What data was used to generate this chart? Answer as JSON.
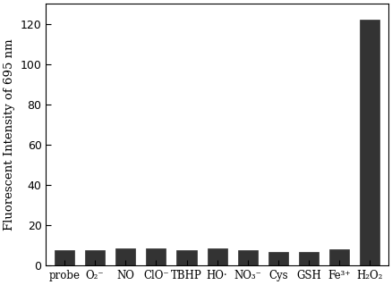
{
  "categories": [
    "probe",
    "O₂⁻",
    "NO",
    "ClO⁻",
    "TBHP",
    "HO·",
    "NO₃⁻",
    "Cys",
    "GSH",
    "Fe³⁺",
    "H₂O₂"
  ],
  "values": [
    7.5,
    7.5,
    8.5,
    8.5,
    7.5,
    8.5,
    7.5,
    6.5,
    6.5,
    8.0,
    122.0
  ],
  "bar_color": "#333333",
  "ylabel": "Fluorescent Intensity of 695 nm",
  "ylim": [
    0,
    130
  ],
  "yticks": [
    0,
    20,
    40,
    60,
    80,
    100,
    120
  ],
  "bar_width": 0.65,
  "edge_color": "#333333",
  "background_color": "#ffffff",
  "ylabel_fontsize": 9.5,
  "tick_fontsize": 9,
  "xlabel_fontsize": 8.5
}
